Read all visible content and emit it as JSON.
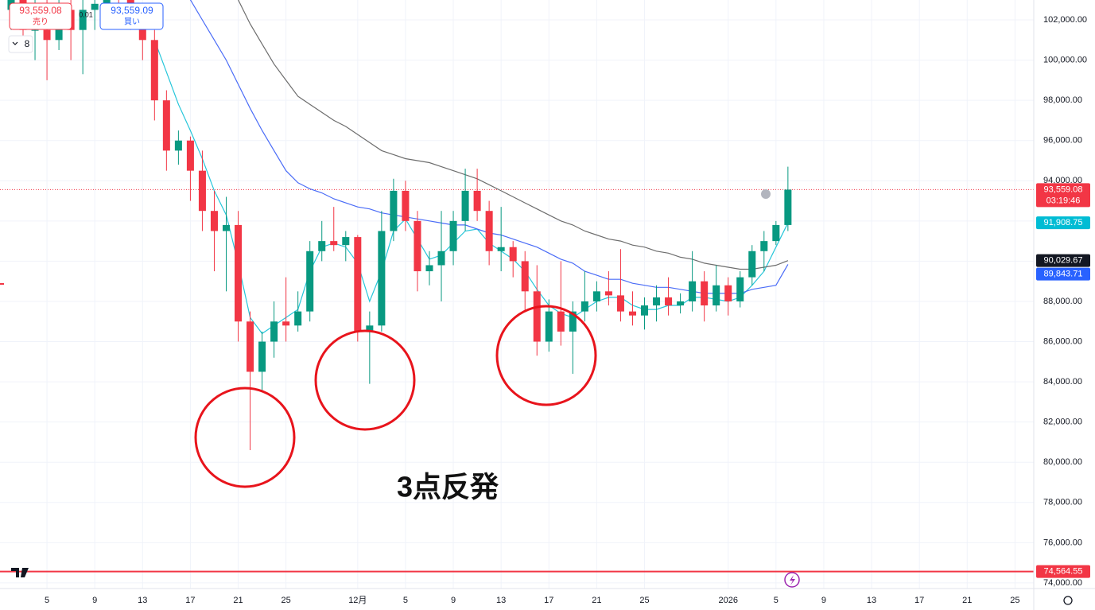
{
  "chart_data": {
    "type": "candlestick",
    "annotation": "3点反発",
    "up_color": "#089981",
    "down_color": "#f23645",
    "x": [
      2,
      3,
      4,
      5,
      6,
      7,
      8,
      9,
      10,
      11,
      12,
      13,
      14,
      15,
      16,
      17,
      18,
      19,
      20,
      21,
      22,
      23,
      24,
      25,
      26,
      27,
      28,
      29,
      30,
      31,
      32,
      33,
      34,
      35,
      36,
      37,
      38,
      39,
      40,
      41,
      42,
      43,
      44,
      45,
      46,
      47,
      48,
      49,
      50,
      51,
      52,
      53,
      54,
      55,
      56,
      57,
      58,
      59,
      60,
      61,
      62,
      63,
      64,
      65,
      66,
      67
    ],
    "open": [
      102500,
      103000,
      101500,
      101500,
      101000,
      102500,
      101500,
      102500,
      102800,
      103500,
      103000,
      102000,
      101000,
      98000,
      95500,
      96000,
      94500,
      92500,
      91500,
      91800,
      87000,
      84500,
      86000,
      87000,
      86800,
      87500,
      90500,
      91000,
      90800,
      91200,
      86500,
      86800,
      91500,
      93500,
      92000,
      89500,
      89800,
      90500,
      92000,
      93500,
      92500,
      90500,
      90700,
      90000,
      88500,
      86000,
      87500,
      86500,
      87500,
      88000,
      88500,
      88300,
      87500,
      87300,
      87800,
      88200,
      87800,
      88000,
      89000,
      87800,
      88800,
      88000,
      89200,
      90500,
      91000,
      91800
    ],
    "high": [
      103500,
      103500,
      103000,
      103000,
      103000,
      103500,
      103500,
      104000,
      104500,
      104500,
      103500,
      102800,
      101500,
      98500,
      96500,
      96200,
      95500,
      93500,
      93200,
      92500,
      87500,
      86500,
      88000,
      89200,
      88500,
      91000,
      92000,
      92700,
      91500,
      91300,
      87500,
      92500,
      94100,
      94000,
      92500,
      90500,
      92500,
      92500,
      94600,
      94600,
      93000,
      92700,
      91000,
      90500,
      89800,
      88100,
      90000,
      88000,
      89500,
      89000,
      89500,
      90600,
      88500,
      88200,
      88800,
      89200,
      88400,
      90500,
      89500,
      89800,
      89200,
      89500,
      90800,
      91500,
      92000,
      94700
    ],
    "low": [
      101500,
      101000,
      100000,
      99000,
      100500,
      100000,
      99300,
      101500,
      102000,
      102500,
      101500,
      100000,
      97000,
      94500,
      94800,
      93000,
      91500,
      89500,
      88500,
      86000,
      80600,
      83500,
      85200,
      86000,
      86500,
      87000,
      90000,
      90500,
      90000,
      86000,
      83900,
      86500,
      91000,
      91500,
      88500,
      88800,
      88000,
      89800,
      91500,
      92000,
      89800,
      89500,
      89200,
      87500,
      85300,
      85500,
      85800,
      84400,
      87000,
      87500,
      87800,
      87000,
      86800,
      86600,
      87000,
      87300,
      87400,
      87500,
      87000,
      87500,
      87300,
      87700,
      88800,
      89500,
      90800,
      91500
    ],
    "close": [
      103000,
      101500,
      101500,
      101000,
      102500,
      101500,
      102500,
      102800,
      103500,
      103000,
      102000,
      101000,
      98000,
      95500,
      96000,
      94500,
      92500,
      91500,
      91800,
      87000,
      84500,
      86000,
      87000,
      86800,
      87500,
      90500,
      91000,
      90800,
      91200,
      86500,
      86800,
      91500,
      93500,
      92000,
      89500,
      89800,
      90500,
      92000,
      93500,
      92500,
      90500,
      90700,
      90000,
      88500,
      86000,
      87500,
      86500,
      87500,
      88000,
      88500,
      88300,
      87500,
      87300,
      87800,
      88200,
      87800,
      88000,
      89000,
      87800,
      88800,
      88000,
      89200,
      90500,
      91000,
      91800,
      93559.08
    ],
    "series": [
      {
        "color": "#26c6da",
        "values": [
          null,
          null,
          null,
          null,
          null,
          null,
          null,
          null,
          null,
          null,
          null,
          null,
          101000,
          99400,
          97800,
          96500,
          95100,
          93500,
          92300,
          89900,
          87200,
          86400,
          86800,
          87200,
          87600,
          89500,
          90700,
          90900,
          90700,
          89900,
          88000,
          89500,
          91500,
          92100,
          91100,
          90100,
          90300,
          90900,
          91500,
          91600,
          90900,
          90500,
          90100,
          89500,
          88600,
          87800,
          87400,
          87200,
          87600,
          88000,
          88200,
          88200,
          87800,
          87600,
          87600,
          87800,
          87800,
          88200,
          88200,
          88100,
          88000,
          88200,
          88800,
          89500,
          90700,
          91908.75
        ]
      },
      {
        "color": "#6d6d6d",
        "values": [
          null,
          null,
          null,
          null,
          null,
          null,
          null,
          null,
          null,
          null,
          null,
          null,
          null,
          null,
          null,
          null,
          null,
          null,
          null,
          103000,
          101800,
          100800,
          99800,
          99000,
          98200,
          97800,
          97400,
          97000,
          96700,
          96300,
          95900,
          95500,
          95300,
          95100,
          95000,
          94900,
          94700,
          94500,
          94300,
          94100,
          93800,
          93500,
          93200,
          92900,
          92600,
          92300,
          92000,
          91800,
          91500,
          91300,
          91100,
          91000,
          90800,
          90700,
          90500,
          90400,
          90200,
          90100,
          89900,
          89800,
          89700,
          89600,
          89600,
          89700,
          89800,
          90029.67
        ]
      },
      {
        "color": "#4a6cf7",
        "values": [
          null,
          null,
          null,
          null,
          null,
          null,
          null,
          null,
          null,
          null,
          null,
          null,
          null,
          null,
          null,
          103000,
          102000,
          101000,
          100000,
          98800,
          97600,
          96500,
          95500,
          94500,
          93900,
          93600,
          93400,
          93100,
          92900,
          92700,
          92600,
          92400,
          92300,
          92200,
          92100,
          92000,
          91900,
          91800,
          91800,
          91600,
          91400,
          91300,
          91100,
          90900,
          90700,
          90400,
          90100,
          89900,
          89500,
          89300,
          89100,
          89100,
          88900,
          88800,
          88700,
          88700,
          88600,
          88500,
          88400,
          88400,
          88400,
          88400,
          88600,
          88700,
          88800,
          89843.71
        ]
      }
    ],
    "xlim": [
      1.07,
      87.57
    ],
    "ylim": [
      73720,
      102990
    ],
    "xticks": [
      5,
      9,
      13,
      17,
      21,
      25,
      {
        "value": 31,
        "label": "12月"
      },
      {
        "value": 35,
        "label": "5"
      },
      {
        "value": 39,
        "label": "9"
      },
      {
        "value": 43,
        "label": "13"
      },
      {
        "value": 47,
        "label": "17"
      },
      {
        "value": 51,
        "label": "21"
      },
      {
        "value": 55,
        "label": "25"
      },
      {
        "value": 62,
        "label": "2026"
      },
      {
        "value": 66,
        "label": "5"
      },
      {
        "value": 70,
        "label": "9"
      },
      {
        "value": 74,
        "label": "13"
      },
      {
        "value": 78,
        "label": "17"
      },
      {
        "value": 82,
        "label": "21"
      },
      {
        "value": 86,
        "label": "25"
      }
    ],
    "yticks": [
      {
        "value": 74000,
        "label": "74,000.00"
      },
      {
        "value": 76000,
        "label": "76,000.00"
      },
      {
        "value": 78000,
        "label": "78,000.00"
      },
      {
        "value": 80000,
        "label": "80,000.00"
      },
      {
        "value": 82000,
        "label": "82,000.00"
      },
      {
        "value": 84000,
        "label": "84,000.00"
      },
      {
        "value": 86000,
        "label": "86,000.00"
      },
      {
        "value": 88000,
        "label": "88,000.00"
      },
      {
        "value": 90000,
        "label": "90,000.00"
      },
      {
        "value": 92000,
        "label": "92,000.00"
      },
      {
        "value": 94000,
        "label": "94,000.00"
      },
      {
        "value": 96000,
        "label": "96,000.00"
      },
      {
        "value": 98000,
        "label": "98,000.00"
      },
      {
        "value": 100000,
        "label": "100,000.00"
      },
      {
        "value": 102000,
        "label": "102,000.00"
      }
    ],
    "grid": true,
    "price_labels": [
      {
        "value": 93559.08,
        "label": "93,559.08",
        "color": "#f23645",
        "countdown": "03:19:46",
        "line": "dotted"
      },
      {
        "value": 91908.75,
        "label": "91,908.75",
        "color": "#00bcd4"
      },
      {
        "value": 90029.67,
        "label": "90,029.67",
        "color": "#131722"
      },
      {
        "value": 89843.71,
        "label": "89,843.71",
        "color": "#2962ff"
      },
      {
        "value": 74564.55,
        "label": "74,564.55",
        "color": "#f23645",
        "line": "solid"
      }
    ]
  },
  "order_panel": {
    "sell_price": "93,559.08",
    "sell_label": "売り",
    "spread": "0.01",
    "buy_price": "93,559.09",
    "buy_label": "買い",
    "quantity": "8"
  }
}
